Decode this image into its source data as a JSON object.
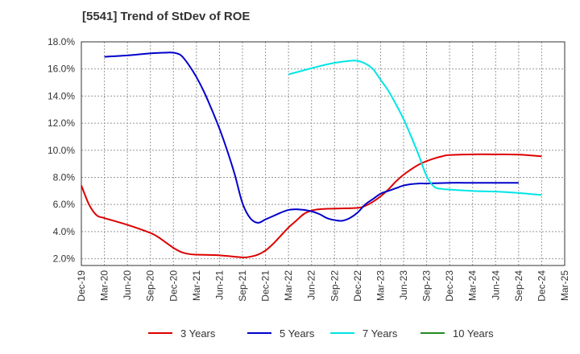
{
  "chart_data": {
    "type": "line",
    "title": "[5541]  Trend of StDev of ROE",
    "xlabel": "",
    "ylabel": "",
    "x_ticks": [
      "Dec-19",
      "Mar-20",
      "Jun-20",
      "Sep-20",
      "Dec-20",
      "Mar-21",
      "Jun-21",
      "Sep-21",
      "Dec-21",
      "Mar-22",
      "Jun-22",
      "Sep-22",
      "Dec-22",
      "Mar-23",
      "Jun-23",
      "Sep-23",
      "Dec-23",
      "Mar-24",
      "Jun-24",
      "Sep-24",
      "Dec-24",
      "Mar-25"
    ],
    "y_ticks": [
      "2.0%",
      "4.0%",
      "6.0%",
      "8.0%",
      "10.0%",
      "12.0%",
      "14.0%",
      "16.0%",
      "18.0%"
    ],
    "ylim": [
      1.5,
      18.0
    ],
    "grid": true,
    "legend_position": "bottom",
    "series": [
      {
        "name": "3 Years",
        "color": "#dd0000",
        "points": [
          [
            "Dec-19",
            7.4
          ],
          [
            "Jan-20",
            6.0
          ],
          [
            "Feb-20",
            5.2
          ],
          [
            "Mar-20",
            5.0
          ],
          [
            "Jun-20",
            4.5
          ],
          [
            "Sep-20",
            3.9
          ],
          [
            "Oct-20",
            3.6
          ],
          [
            "Nov-20",
            3.2
          ],
          [
            "Dec-20",
            2.8
          ],
          [
            "Jan-21",
            2.5
          ],
          [
            "Feb-21",
            2.35
          ],
          [
            "Mar-21",
            2.3
          ],
          [
            "Jun-21",
            2.25
          ],
          [
            "Sep-21",
            2.1
          ],
          [
            "Oct-21",
            2.15
          ],
          [
            "Nov-21",
            2.3
          ],
          [
            "Dec-21",
            2.6
          ],
          [
            "Jan-22",
            3.1
          ],
          [
            "Feb-22",
            3.7
          ],
          [
            "Mar-22",
            4.3
          ],
          [
            "Apr-22",
            4.8
          ],
          [
            "May-22",
            5.3
          ],
          [
            "Jun-22",
            5.55
          ],
          [
            "Jul-22",
            5.65
          ],
          [
            "Sep-22",
            5.7
          ],
          [
            "Dec-22",
            5.75
          ],
          [
            "Jan-23",
            5.9
          ],
          [
            "Feb-23",
            6.2
          ],
          [
            "Mar-23",
            6.6
          ],
          [
            "Apr-23",
            7.1
          ],
          [
            "May-23",
            7.7
          ],
          [
            "Jun-23",
            8.2
          ],
          [
            "Jul-23",
            8.6
          ],
          [
            "Aug-23",
            8.95
          ],
          [
            "Sep-23",
            9.2
          ],
          [
            "Oct-23",
            9.4
          ],
          [
            "Nov-23",
            9.55
          ],
          [
            "Dec-23",
            9.65
          ],
          [
            "Mar-24",
            9.7
          ],
          [
            "Jun-24",
            9.7
          ],
          [
            "Sep-24",
            9.68
          ],
          [
            "Dec-24",
            9.55
          ]
        ]
      },
      {
        "name": "5 Years",
        "color": "#0000cc",
        "points": [
          [
            "Dec-19",
            null
          ],
          [
            "Mar-20",
            16.9
          ],
          [
            "Jun-20",
            17.0
          ],
          [
            "Sep-20",
            17.15
          ],
          [
            "Nov-20",
            17.2
          ],
          [
            "Dec-20",
            17.2
          ],
          [
            "Jan-21",
            17.0
          ],
          [
            "Feb-21",
            16.3
          ],
          [
            "Mar-21",
            15.4
          ],
          [
            "Apr-21",
            14.3
          ],
          [
            "May-21",
            13.0
          ],
          [
            "Jun-21",
            11.6
          ],
          [
            "Jul-21",
            10.0
          ],
          [
            "Aug-21",
            8.2
          ],
          [
            "Sep-21",
            6.1
          ],
          [
            "Oct-21",
            5.0
          ],
          [
            "Nov-21",
            4.65
          ],
          [
            "Dec-21",
            4.9
          ],
          [
            "Jan-22",
            5.15
          ],
          [
            "Feb-22",
            5.4
          ],
          [
            "Mar-22",
            5.6
          ],
          [
            "Apr-22",
            5.65
          ],
          [
            "May-22",
            5.6
          ],
          [
            "Jun-22",
            5.5
          ],
          [
            "Jul-22",
            5.3
          ],
          [
            "Aug-22",
            5.0
          ],
          [
            "Sep-22",
            4.85
          ],
          [
            "Oct-22",
            4.8
          ],
          [
            "Nov-22",
            5.0
          ],
          [
            "Dec-22",
            5.4
          ],
          [
            "Jan-23",
            6.0
          ],
          [
            "Feb-23",
            6.4
          ],
          [
            "Mar-23",
            6.8
          ],
          [
            "Apr-23",
            7.0
          ],
          [
            "May-23",
            7.2
          ],
          [
            "Jun-23",
            7.4
          ],
          [
            "Jul-23",
            7.5
          ],
          [
            "Aug-23",
            7.55
          ],
          [
            "Sep-23",
            7.55
          ],
          [
            "Dec-23",
            7.6
          ],
          [
            "Mar-24",
            7.6
          ],
          [
            "Jun-24",
            7.6
          ],
          [
            "Sep-24",
            7.6
          ]
        ]
      },
      {
        "name": "7 Years",
        "color": "#00e5e5",
        "points": [
          [
            "Mar-22",
            15.6
          ],
          [
            "May-22",
            15.9
          ],
          [
            "Jul-22",
            16.2
          ],
          [
            "Sep-22",
            16.45
          ],
          [
            "Nov-22",
            16.6
          ],
          [
            "Dec-22",
            16.6
          ],
          [
            "Jan-23",
            16.4
          ],
          [
            "Feb-23",
            16.0
          ],
          [
            "Mar-23",
            15.2
          ],
          [
            "Apr-23",
            14.4
          ],
          [
            "May-23",
            13.4
          ],
          [
            "Jun-23",
            12.3
          ],
          [
            "Jul-23",
            11.0
          ],
          [
            "Aug-23",
            9.6
          ],
          [
            "Sep-23",
            8.1
          ],
          [
            "Oct-23",
            7.3
          ],
          [
            "Nov-23",
            7.15
          ],
          [
            "Dec-23",
            7.1
          ],
          [
            "Mar-24",
            7.0
          ],
          [
            "Jun-24",
            6.95
          ],
          [
            "Sep-24",
            6.85
          ],
          [
            "Dec-24",
            6.7
          ]
        ]
      },
      {
        "name": "10 Years",
        "color": "#228b22",
        "points": []
      }
    ]
  }
}
